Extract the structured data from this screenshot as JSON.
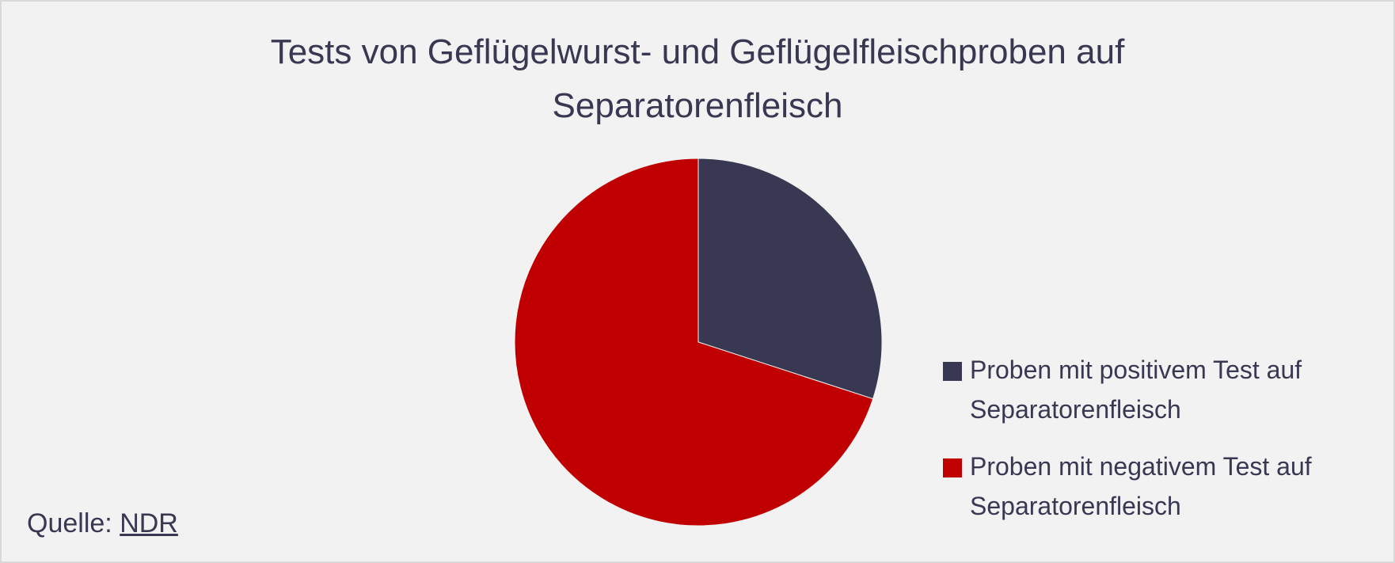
{
  "chart_data": {
    "type": "pie",
    "title": "Tests von Geflügelwurst- und Geflügelfleischproben auf Separatorenfleisch",
    "categories": [
      "Proben mit positivem Test auf Separatorenfleisch",
      "Proben mit negativem Test auf Separatorenfleisch"
    ],
    "values": [
      30,
      70
    ],
    "colors": [
      "#383853",
      "#c00000"
    ],
    "legend": "right"
  },
  "source": {
    "label": "Quelle:",
    "link": "NDR"
  }
}
